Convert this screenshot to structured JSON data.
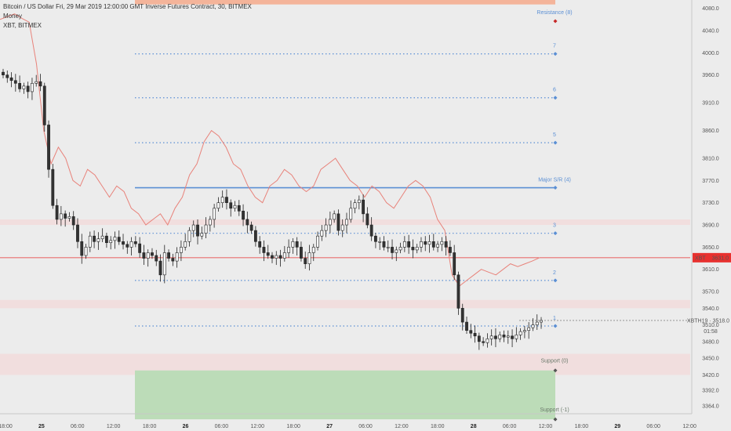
{
  "legend": {
    "title": "Bitcoin / US Dollar Fri, 29 Mar 2019 12:00:00 GMT Inverse Futures Contract, 30, BITMEX",
    "line2": "Money",
    "line3": "XBT, BITMEX"
  },
  "price_axis": {
    "ticks": [
      "4080.0",
      "4040.0",
      "4000.0",
      "3960.0",
      "3910.0",
      "3860.0",
      "3810.0",
      "3770.0",
      "3730.0",
      "3690.0",
      "3650.0",
      "3610.0",
      "3570.0",
      "3540.0",
      "3510.0",
      "3480.0",
      "3450.0",
      "3420.0",
      "3392.0",
      "3364.0"
    ],
    "xbt_tag": {
      "label": "XBT",
      "value": "3631.0",
      "color": "#e8312f"
    },
    "xbth_label": "XBTH19 · 3518.0",
    "countdown": "01:58"
  },
  "time_axis": {
    "labels": [
      {
        "text": "18:00",
        "bold": false
      },
      {
        "text": "25",
        "bold": true
      },
      {
        "text": "06:00",
        "bold": false
      },
      {
        "text": "12:00",
        "bold": false
      },
      {
        "text": "18:00",
        "bold": false
      },
      {
        "text": "26",
        "bold": true
      },
      {
        "text": "06:00",
        "bold": false
      },
      {
        "text": "12:00",
        "bold": false
      },
      {
        "text": "18:00",
        "bold": false
      },
      {
        "text": "27",
        "bold": true
      },
      {
        "text": "06:00",
        "bold": false
      },
      {
        "text": "12:00",
        "bold": false
      },
      {
        "text": "18:00",
        "bold": false
      },
      {
        "text": "28",
        "bold": true
      },
      {
        "text": "06:00",
        "bold": false
      },
      {
        "text": "12:00",
        "bold": false
      },
      {
        "text": "18:00",
        "bold": false
      },
      {
        "text": "29",
        "bold": true
      },
      {
        "text": "06:00",
        "bold": false
      },
      {
        "text": "12:00",
        "bold": false
      }
    ]
  },
  "levels": [
    {
      "label": "Resistance (8)",
      "price": 4087,
      "style": "zone-top",
      "color": "#f4b49a"
    },
    {
      "label": "7",
      "price": 3998,
      "style": "dotted",
      "color": "#5b8fd4"
    },
    {
      "label": "6",
      "price": 3919,
      "style": "dotted",
      "color": "#5b8fd4"
    },
    {
      "label": "5",
      "price": 3838,
      "style": "dotted",
      "color": "#5b8fd4"
    },
    {
      "label": "Major S/R (4)",
      "price": 3757,
      "style": "solid",
      "color": "#5b8fd4"
    },
    {
      "label": "3",
      "price": 3675,
      "style": "dotted",
      "color": "#5b8fd4"
    },
    {
      "label": "2",
      "price": 3590,
      "style": "dotted",
      "color": "#5b8fd4"
    },
    {
      "label": "1",
      "price": 3508,
      "style": "dotted",
      "color": "#5b8fd4"
    },
    {
      "label": "Support (0)",
      "price": 3428,
      "style": "zone-bottom",
      "color": "#bcdcb8"
    },
    {
      "label": "Support (-1)",
      "price": 3340,
      "style": "plain",
      "color": "#bcdcb8"
    }
  ],
  "chart_data": {
    "type": "candlestick",
    "title": "Bitcoin / US Dollar Fri, 29 Mar 2019 12:00:00 GMT Inverse Futures Contract, 30, BITMEX",
    "timeframe": "30",
    "ylim": [
      3350,
      4095
    ],
    "current_price_xbt": 3631.0,
    "current_price_xbth19": 3518.0,
    "candles_close_approx": [
      3960,
      3955,
      3950,
      3945,
      3935,
      3940,
      3930,
      3945,
      3948,
      3940,
      3870,
      3790,
      3725,
      3700,
      3710,
      3702,
      3705,
      3690,
      3660,
      3635,
      3650,
      3670,
      3660,
      3665,
      3670,
      3658,
      3662,
      3668,
      3660,
      3655,
      3650,
      3660,
      3656,
      3640,
      3630,
      3640,
      3635,
      3625,
      3600,
      3640,
      3630,
      3625,
      3640,
      3650,
      3660,
      3680,
      3690,
      3670,
      3675,
      3690,
      3700,
      3720,
      3730,
      3740,
      3730,
      3720,
      3725,
      3715,
      3700,
      3690,
      3680,
      3660,
      3650,
      3640,
      3635,
      3630,
      3635,
      3630,
      3640,
      3650,
      3660,
      3650,
      3630,
      3620,
      3640,
      3650,
      3670,
      3680,
      3690,
      3700,
      3710,
      3680,
      3690,
      3700,
      3720,
      3730,
      3735,
      3710,
      3690,
      3670,
      3660,
      3660,
      3650,
      3650,
      3640,
      3645,
      3650,
      3660,
      3650,
      3645,
      3650,
      3660,
      3655,
      3660,
      3650,
      3655,
      3660,
      3650,
      3640,
      3600,
      3540,
      3515,
      3500,
      3495,
      3490,
      3480,
      3478,
      3485,
      3490,
      3485,
      3492,
      3488,
      3490,
      3485,
      3492,
      3498,
      3500,
      3505,
      3510,
      3515,
      3518
    ],
    "money_line_approx": [
      4060,
      4065,
      4070,
      4062,
      4055,
      3980,
      3860,
      3800,
      3830,
      3810,
      3770,
      3760,
      3790,
      3780,
      3760,
      3740,
      3760,
      3750,
      3720,
      3710,
      3690,
      3700,
      3710,
      3690,
      3720,
      3740,
      3780,
      3800,
      3840,
      3860,
      3850,
      3830,
      3800,
      3790,
      3760,
      3740,
      3730,
      3760,
      3770,
      3790,
      3780,
      3760,
      3750,
      3760,
      3790,
      3800,
      3810,
      3790,
      3770,
      3760,
      3740,
      3760,
      3750,
      3730,
      3720,
      3740,
      3760,
      3770,
      3760,
      3740,
      3700,
      3680,
      3600,
      3580,
      3590,
      3600,
      3610,
      3605,
      3600,
      3610,
      3620,
      3615,
      3620,
      3625,
      3631
    ]
  }
}
